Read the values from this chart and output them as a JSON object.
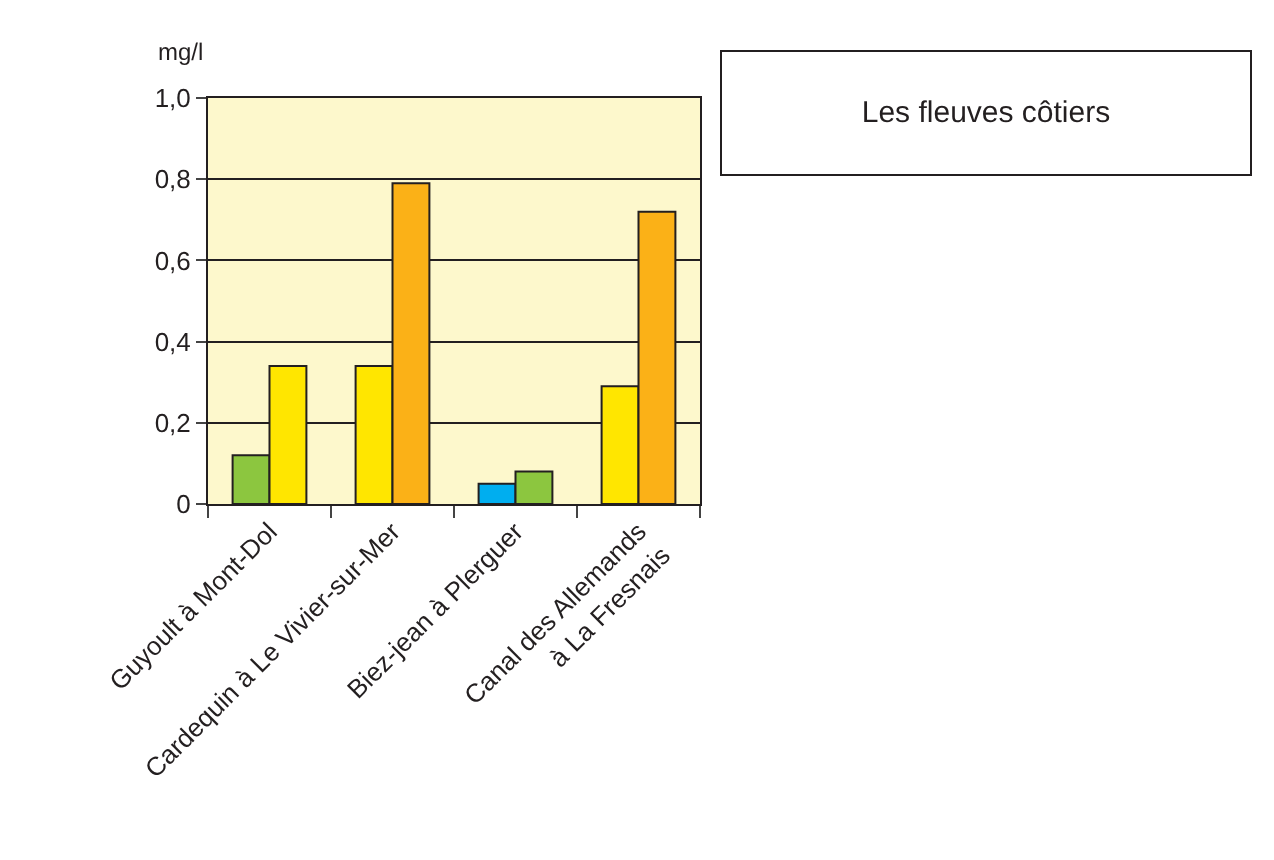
{
  "chart_data": {
    "type": "bar",
    "title": "Les fleuves côtiers",
    "ylabel": "mg/l",
    "categories": [
      "Guyoult à Mont-Dol",
      "Cardequin à Le Vivier-sur-Mer",
      "Biez-jean à Plerguer",
      "Canal des Allemands\nà La Fresnais"
    ],
    "series": [
      {
        "colors": [
          "#8cc63f",
          "#ffe600",
          "#00aeef",
          "#ffe600"
        ],
        "values": [
          0.12,
          0.34,
          0.05,
          0.29
        ]
      },
      {
        "colors": [
          "#ffe600",
          "#fbb117",
          "#8cc63f",
          "#fbb117"
        ],
        "values": [
          0.34,
          0.79,
          0.08,
          0.72
        ]
      }
    ],
    "ylim": [
      0,
      1.0
    ],
    "yticks": [
      0,
      {
        "value": 0.2,
        "label": "0,2"
      },
      {
        "value": 0.4,
        "label": "0,4"
      },
      {
        "value": 0.6,
        "label": "0,6"
      },
      {
        "value": 0.8,
        "label": "0,8"
      },
      {
        "value": 1.0,
        "label": "1,0"
      }
    ],
    "grid": "y"
  }
}
